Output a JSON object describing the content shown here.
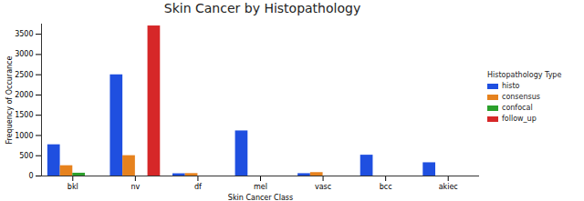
{
  "chart_data": {
    "type": "bar",
    "title": "Skin Cancer by Histopathology",
    "x_label": "Skin Cancer Class",
    "y_label": "Frequency of Occurance",
    "legend_title": "Histopathology Type",
    "categories": [
      "bkl",
      "nv",
      "df",
      "mel",
      "vasc",
      "bcc",
      "akiec"
    ],
    "series": [
      {
        "name": "histo",
        "color": "#1f4fe0",
        "values": [
          771,
          2498,
          55,
          1113,
          58,
          514,
          327
        ]
      },
      {
        "name": "consensus",
        "color": "#e6821e",
        "values": [
          254,
          502,
          60,
          null,
          84,
          null,
          null
        ]
      },
      {
        "name": "confocal",
        "color": "#2ca02c",
        "values": [
          69,
          null,
          null,
          null,
          null,
          null,
          null
        ]
      },
      {
        "name": "follow_up",
        "color": "#d62728",
        "values": [
          null,
          3704,
          null,
          null,
          null,
          null,
          null
        ]
      }
    ],
    "ylim": [
      0,
      3750
    ],
    "yticks": [
      0,
      500,
      1000,
      1500,
      2000,
      2500,
      3000,
      3500
    ],
    "legend": "right",
    "grid": false
  }
}
